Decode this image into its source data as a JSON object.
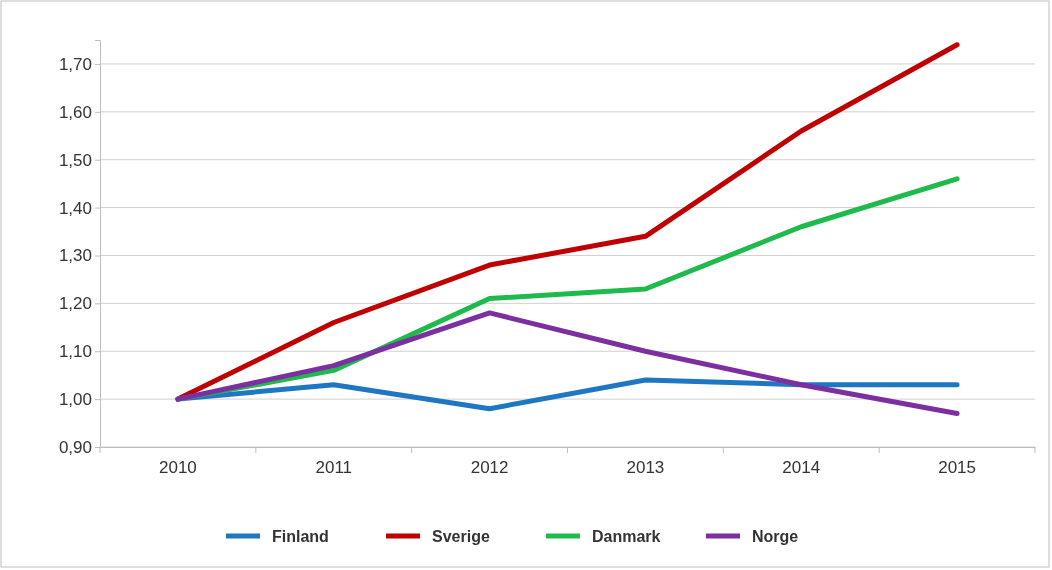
{
  "chart_data": {
    "type": "line",
    "categories": [
      "2010",
      "2011",
      "2012",
      "2013",
      "2014",
      "2015"
    ],
    "series": [
      {
        "name": "Finland",
        "color": "#1f77c4",
        "values": [
          1.0,
          1.03,
          0.98,
          1.04,
          1.03,
          1.03
        ]
      },
      {
        "name": "Sverige",
        "color": "#c00000",
        "values": [
          1.0,
          1.16,
          1.28,
          1.34,
          1.56,
          1.74
        ]
      },
      {
        "name": "Danmark",
        "color": "#1fba4c",
        "values": [
          1.0,
          1.06,
          1.21,
          1.23,
          1.36,
          1.46
        ]
      },
      {
        "name": "Norge",
        "color": "#7b2fa0",
        "values": [
          1.0,
          1.07,
          1.18,
          1.1,
          1.03,
          0.97
        ]
      }
    ],
    "ylim": [
      0.9,
      1.75
    ],
    "yticks": [
      {
        "value": 0.9,
        "label": "0,90"
      },
      {
        "value": 1.0,
        "label": "1,00"
      },
      {
        "value": 1.1,
        "label": "1,10"
      },
      {
        "value": 1.2,
        "label": "1,20"
      },
      {
        "value": 1.3,
        "label": "1,30"
      },
      {
        "value": 1.4,
        "label": "1,40"
      },
      {
        "value": 1.5,
        "label": "1,50"
      },
      {
        "value": 1.6,
        "label": "1,60"
      },
      {
        "value": 1.7,
        "label": "1,70"
      }
    ],
    "grid": "y",
    "legend": "bottom",
    "marker": "none",
    "line_style": "solid"
  }
}
